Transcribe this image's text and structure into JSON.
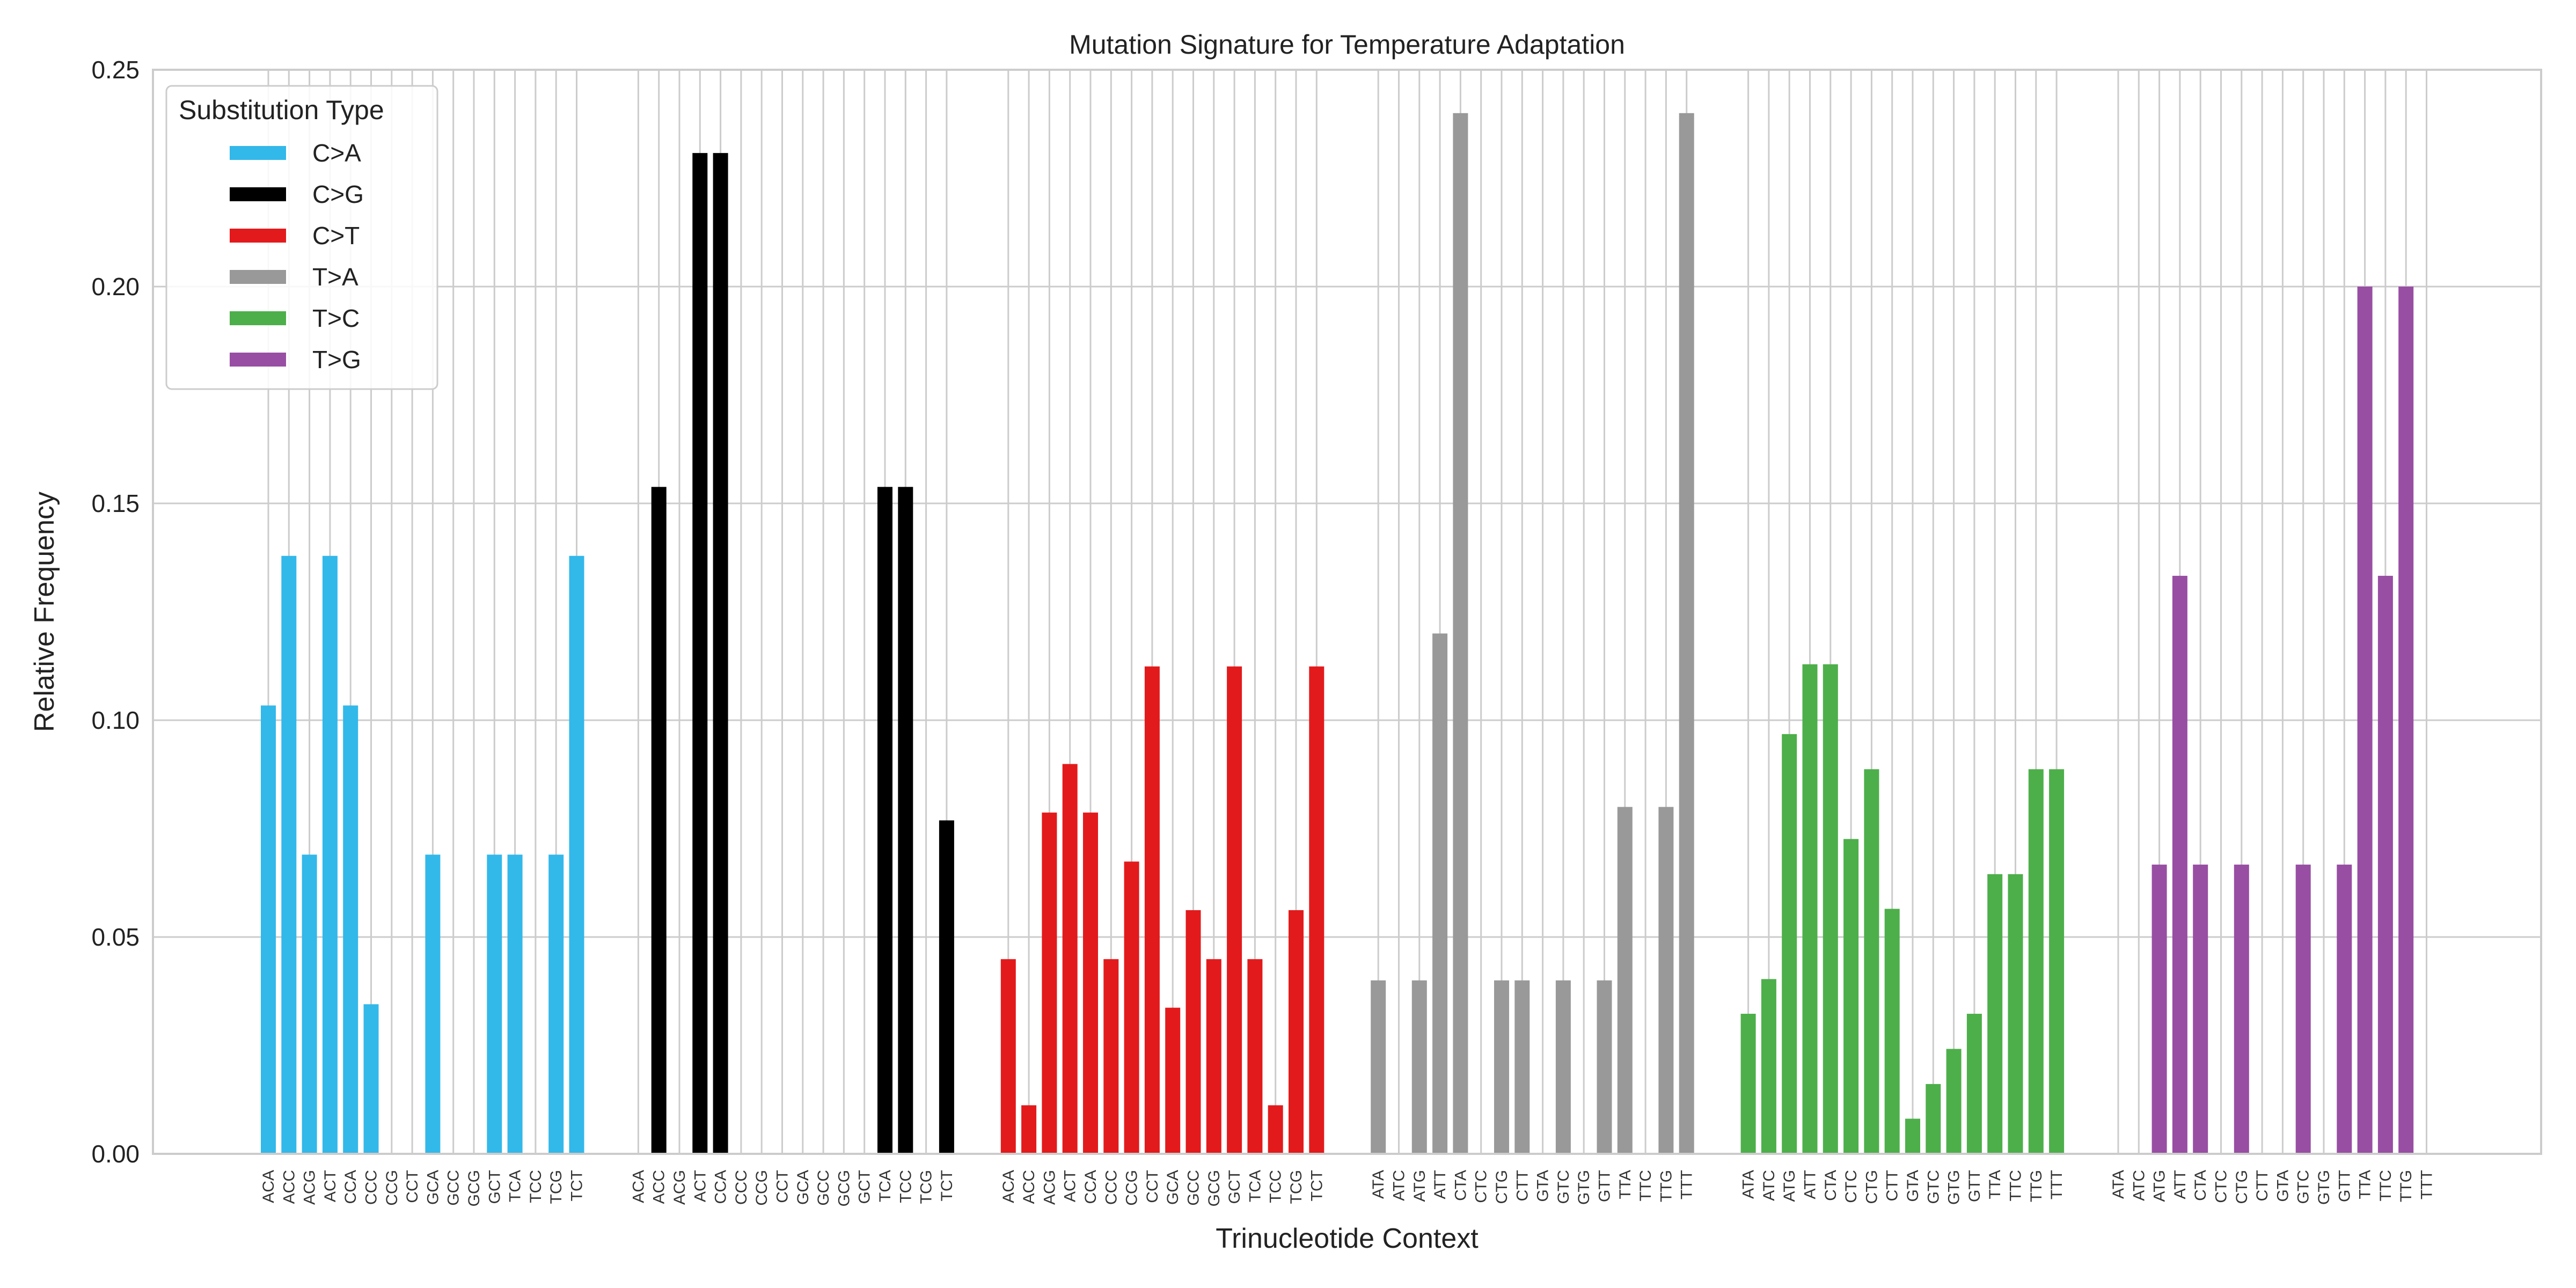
{
  "chart_data": {
    "type": "bar",
    "title": "Mutation Signature for Temperature Adaptation",
    "xlabel": "Trinucleotide Context",
    "ylabel": "Relative Frequency",
    "ylim": [
      0,
      0.25
    ],
    "yticks": [
      "0.00",
      "0.05",
      "0.10",
      "0.15",
      "0.20",
      "0.25"
    ],
    "grid": true,
    "legend": {
      "title": "Substitution Type",
      "placement": "top-left"
    },
    "series": [
      {
        "name": "C>A",
        "color": "#33b8ea",
        "contexts": [
          "ACA",
          "ACC",
          "ACG",
          "ACT",
          "CCA",
          "CCC",
          "CCG",
          "CCT",
          "GCA",
          "GCC",
          "GCG",
          "GCT",
          "TCA",
          "TCC",
          "TCG",
          "TCT"
        ],
        "values": [
          0.1034,
          0.1379,
          0.069,
          0.1379,
          0.1034,
          0.0345,
          0,
          0,
          0.069,
          0,
          0,
          0.069,
          0.069,
          0,
          0.069,
          0.1379
        ]
      },
      {
        "name": "C>G",
        "color": "#000000",
        "contexts": [
          "ACA",
          "ACC",
          "ACG",
          "ACT",
          "CCA",
          "CCC",
          "CCG",
          "CCT",
          "GCA",
          "GCC",
          "GCG",
          "GCT",
          "TCA",
          "TCC",
          "TCG",
          "TCT"
        ],
        "values": [
          0,
          0.1538,
          0,
          0.2308,
          0.2308,
          0,
          0,
          0,
          0,
          0,
          0,
          0,
          0.1538,
          0.1538,
          0,
          0.0769
        ]
      },
      {
        "name": "C>T",
        "color": "#e31a1c",
        "contexts": [
          "ACA",
          "ACC",
          "ACG",
          "ACT",
          "CCA",
          "CCC",
          "CCG",
          "CCT",
          "GCA",
          "GCC",
          "GCG",
          "GCT",
          "TCA",
          "TCC",
          "TCG",
          "TCT"
        ],
        "values": [
          0.0449,
          0.0112,
          0.0787,
          0.0899,
          0.0787,
          0.0449,
          0.0674,
          0.1124,
          0.0337,
          0.0562,
          0.0449,
          0.1124,
          0.0449,
          0.0112,
          0.0562,
          0.1124
        ]
      },
      {
        "name": "T>A",
        "color": "#999999",
        "contexts": [
          "ATA",
          "ATC",
          "ATG",
          "ATT",
          "CTA",
          "CTC",
          "CTG",
          "CTT",
          "GTA",
          "GTC",
          "GTG",
          "GTT",
          "TTA",
          "TTC",
          "TTG",
          "TTT"
        ],
        "values": [
          0.04,
          0,
          0.04,
          0.12,
          0.24,
          0,
          0.04,
          0.04,
          0,
          0.04,
          0,
          0.04,
          0.08,
          0,
          0.08,
          0.24
        ]
      },
      {
        "name": "T>C",
        "color": "#4daf4a",
        "contexts": [
          "ATA",
          "ATC",
          "ATG",
          "ATT",
          "CTA",
          "CTC",
          "CTG",
          "CTT",
          "GTA",
          "GTC",
          "GTG",
          "GTT",
          "TTA",
          "TTC",
          "TTG",
          "TTT"
        ],
        "values": [
          0.0323,
          0.0403,
          0.0968,
          0.1129,
          0.1129,
          0.0726,
          0.0887,
          0.0565,
          0.0081,
          0.0161,
          0.0242,
          0.0323,
          0.0645,
          0.0645,
          0.0887,
          0.0887
        ]
      },
      {
        "name": "T>G",
        "color": "#984ea3",
        "contexts": [
          "ATA",
          "ATC",
          "ATG",
          "ATT",
          "CTA",
          "CTC",
          "CTG",
          "CTT",
          "GTA",
          "GTC",
          "GTG",
          "GTT",
          "TTA",
          "TTC",
          "TTG",
          "TTT"
        ],
        "values": [
          0,
          0,
          0.0667,
          0.1333,
          0.0667,
          0,
          0.0667,
          0,
          0,
          0.0667,
          0,
          0.0667,
          0.2,
          0.1333,
          0.2,
          0
        ]
      }
    ]
  }
}
